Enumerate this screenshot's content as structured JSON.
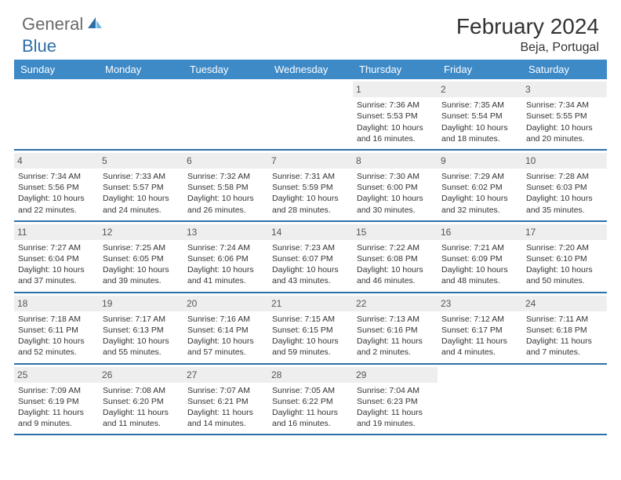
{
  "logo": {
    "text1": "General",
    "text2": "Blue"
  },
  "title": "February 2024",
  "location": "Beja, Portugal",
  "colors": {
    "header_bg": "#3d8ac7",
    "header_text": "#ffffff",
    "daynum_bg": "#eeeeee",
    "week_border": "#2f6fa8",
    "logo_gray": "#6a6a6a",
    "logo_blue": "#2f6fa8"
  },
  "dayNames": [
    "Sunday",
    "Monday",
    "Tuesday",
    "Wednesday",
    "Thursday",
    "Friday",
    "Saturday"
  ],
  "weeks": [
    [
      {
        "n": "",
        "empty": true
      },
      {
        "n": "",
        "empty": true
      },
      {
        "n": "",
        "empty": true
      },
      {
        "n": "",
        "empty": true
      },
      {
        "n": "1",
        "sunrise": "Sunrise: 7:36 AM",
        "sunset": "Sunset: 5:53 PM",
        "daylight": "Daylight: 10 hours and 16 minutes."
      },
      {
        "n": "2",
        "sunrise": "Sunrise: 7:35 AM",
        "sunset": "Sunset: 5:54 PM",
        "daylight": "Daylight: 10 hours and 18 minutes."
      },
      {
        "n": "3",
        "sunrise": "Sunrise: 7:34 AM",
        "sunset": "Sunset: 5:55 PM",
        "daylight": "Daylight: 10 hours and 20 minutes."
      }
    ],
    [
      {
        "n": "4",
        "sunrise": "Sunrise: 7:34 AM",
        "sunset": "Sunset: 5:56 PM",
        "daylight": "Daylight: 10 hours and 22 minutes."
      },
      {
        "n": "5",
        "sunrise": "Sunrise: 7:33 AM",
        "sunset": "Sunset: 5:57 PM",
        "daylight": "Daylight: 10 hours and 24 minutes."
      },
      {
        "n": "6",
        "sunrise": "Sunrise: 7:32 AM",
        "sunset": "Sunset: 5:58 PM",
        "daylight": "Daylight: 10 hours and 26 minutes."
      },
      {
        "n": "7",
        "sunrise": "Sunrise: 7:31 AM",
        "sunset": "Sunset: 5:59 PM",
        "daylight": "Daylight: 10 hours and 28 minutes."
      },
      {
        "n": "8",
        "sunrise": "Sunrise: 7:30 AM",
        "sunset": "Sunset: 6:00 PM",
        "daylight": "Daylight: 10 hours and 30 minutes."
      },
      {
        "n": "9",
        "sunrise": "Sunrise: 7:29 AM",
        "sunset": "Sunset: 6:02 PM",
        "daylight": "Daylight: 10 hours and 32 minutes."
      },
      {
        "n": "10",
        "sunrise": "Sunrise: 7:28 AM",
        "sunset": "Sunset: 6:03 PM",
        "daylight": "Daylight: 10 hours and 35 minutes."
      }
    ],
    [
      {
        "n": "11",
        "sunrise": "Sunrise: 7:27 AM",
        "sunset": "Sunset: 6:04 PM",
        "daylight": "Daylight: 10 hours and 37 minutes."
      },
      {
        "n": "12",
        "sunrise": "Sunrise: 7:25 AM",
        "sunset": "Sunset: 6:05 PM",
        "daylight": "Daylight: 10 hours and 39 minutes."
      },
      {
        "n": "13",
        "sunrise": "Sunrise: 7:24 AM",
        "sunset": "Sunset: 6:06 PM",
        "daylight": "Daylight: 10 hours and 41 minutes."
      },
      {
        "n": "14",
        "sunrise": "Sunrise: 7:23 AM",
        "sunset": "Sunset: 6:07 PM",
        "daylight": "Daylight: 10 hours and 43 minutes."
      },
      {
        "n": "15",
        "sunrise": "Sunrise: 7:22 AM",
        "sunset": "Sunset: 6:08 PM",
        "daylight": "Daylight: 10 hours and 46 minutes."
      },
      {
        "n": "16",
        "sunrise": "Sunrise: 7:21 AM",
        "sunset": "Sunset: 6:09 PM",
        "daylight": "Daylight: 10 hours and 48 minutes."
      },
      {
        "n": "17",
        "sunrise": "Sunrise: 7:20 AM",
        "sunset": "Sunset: 6:10 PM",
        "daylight": "Daylight: 10 hours and 50 minutes."
      }
    ],
    [
      {
        "n": "18",
        "sunrise": "Sunrise: 7:18 AM",
        "sunset": "Sunset: 6:11 PM",
        "daylight": "Daylight: 10 hours and 52 minutes."
      },
      {
        "n": "19",
        "sunrise": "Sunrise: 7:17 AM",
        "sunset": "Sunset: 6:13 PM",
        "daylight": "Daylight: 10 hours and 55 minutes."
      },
      {
        "n": "20",
        "sunrise": "Sunrise: 7:16 AM",
        "sunset": "Sunset: 6:14 PM",
        "daylight": "Daylight: 10 hours and 57 minutes."
      },
      {
        "n": "21",
        "sunrise": "Sunrise: 7:15 AM",
        "sunset": "Sunset: 6:15 PM",
        "daylight": "Daylight: 10 hours and 59 minutes."
      },
      {
        "n": "22",
        "sunrise": "Sunrise: 7:13 AM",
        "sunset": "Sunset: 6:16 PM",
        "daylight": "Daylight: 11 hours and 2 minutes."
      },
      {
        "n": "23",
        "sunrise": "Sunrise: 7:12 AM",
        "sunset": "Sunset: 6:17 PM",
        "daylight": "Daylight: 11 hours and 4 minutes."
      },
      {
        "n": "24",
        "sunrise": "Sunrise: 7:11 AM",
        "sunset": "Sunset: 6:18 PM",
        "daylight": "Daylight: 11 hours and 7 minutes."
      }
    ],
    [
      {
        "n": "25",
        "sunrise": "Sunrise: 7:09 AM",
        "sunset": "Sunset: 6:19 PM",
        "daylight": "Daylight: 11 hours and 9 minutes."
      },
      {
        "n": "26",
        "sunrise": "Sunrise: 7:08 AM",
        "sunset": "Sunset: 6:20 PM",
        "daylight": "Daylight: 11 hours and 11 minutes."
      },
      {
        "n": "27",
        "sunrise": "Sunrise: 7:07 AM",
        "sunset": "Sunset: 6:21 PM",
        "daylight": "Daylight: 11 hours and 14 minutes."
      },
      {
        "n": "28",
        "sunrise": "Sunrise: 7:05 AM",
        "sunset": "Sunset: 6:22 PM",
        "daylight": "Daylight: 11 hours and 16 minutes."
      },
      {
        "n": "29",
        "sunrise": "Sunrise: 7:04 AM",
        "sunset": "Sunset: 6:23 PM",
        "daylight": "Daylight: 11 hours and 19 minutes."
      },
      {
        "n": "",
        "empty": true
      },
      {
        "n": "",
        "empty": true
      }
    ]
  ]
}
